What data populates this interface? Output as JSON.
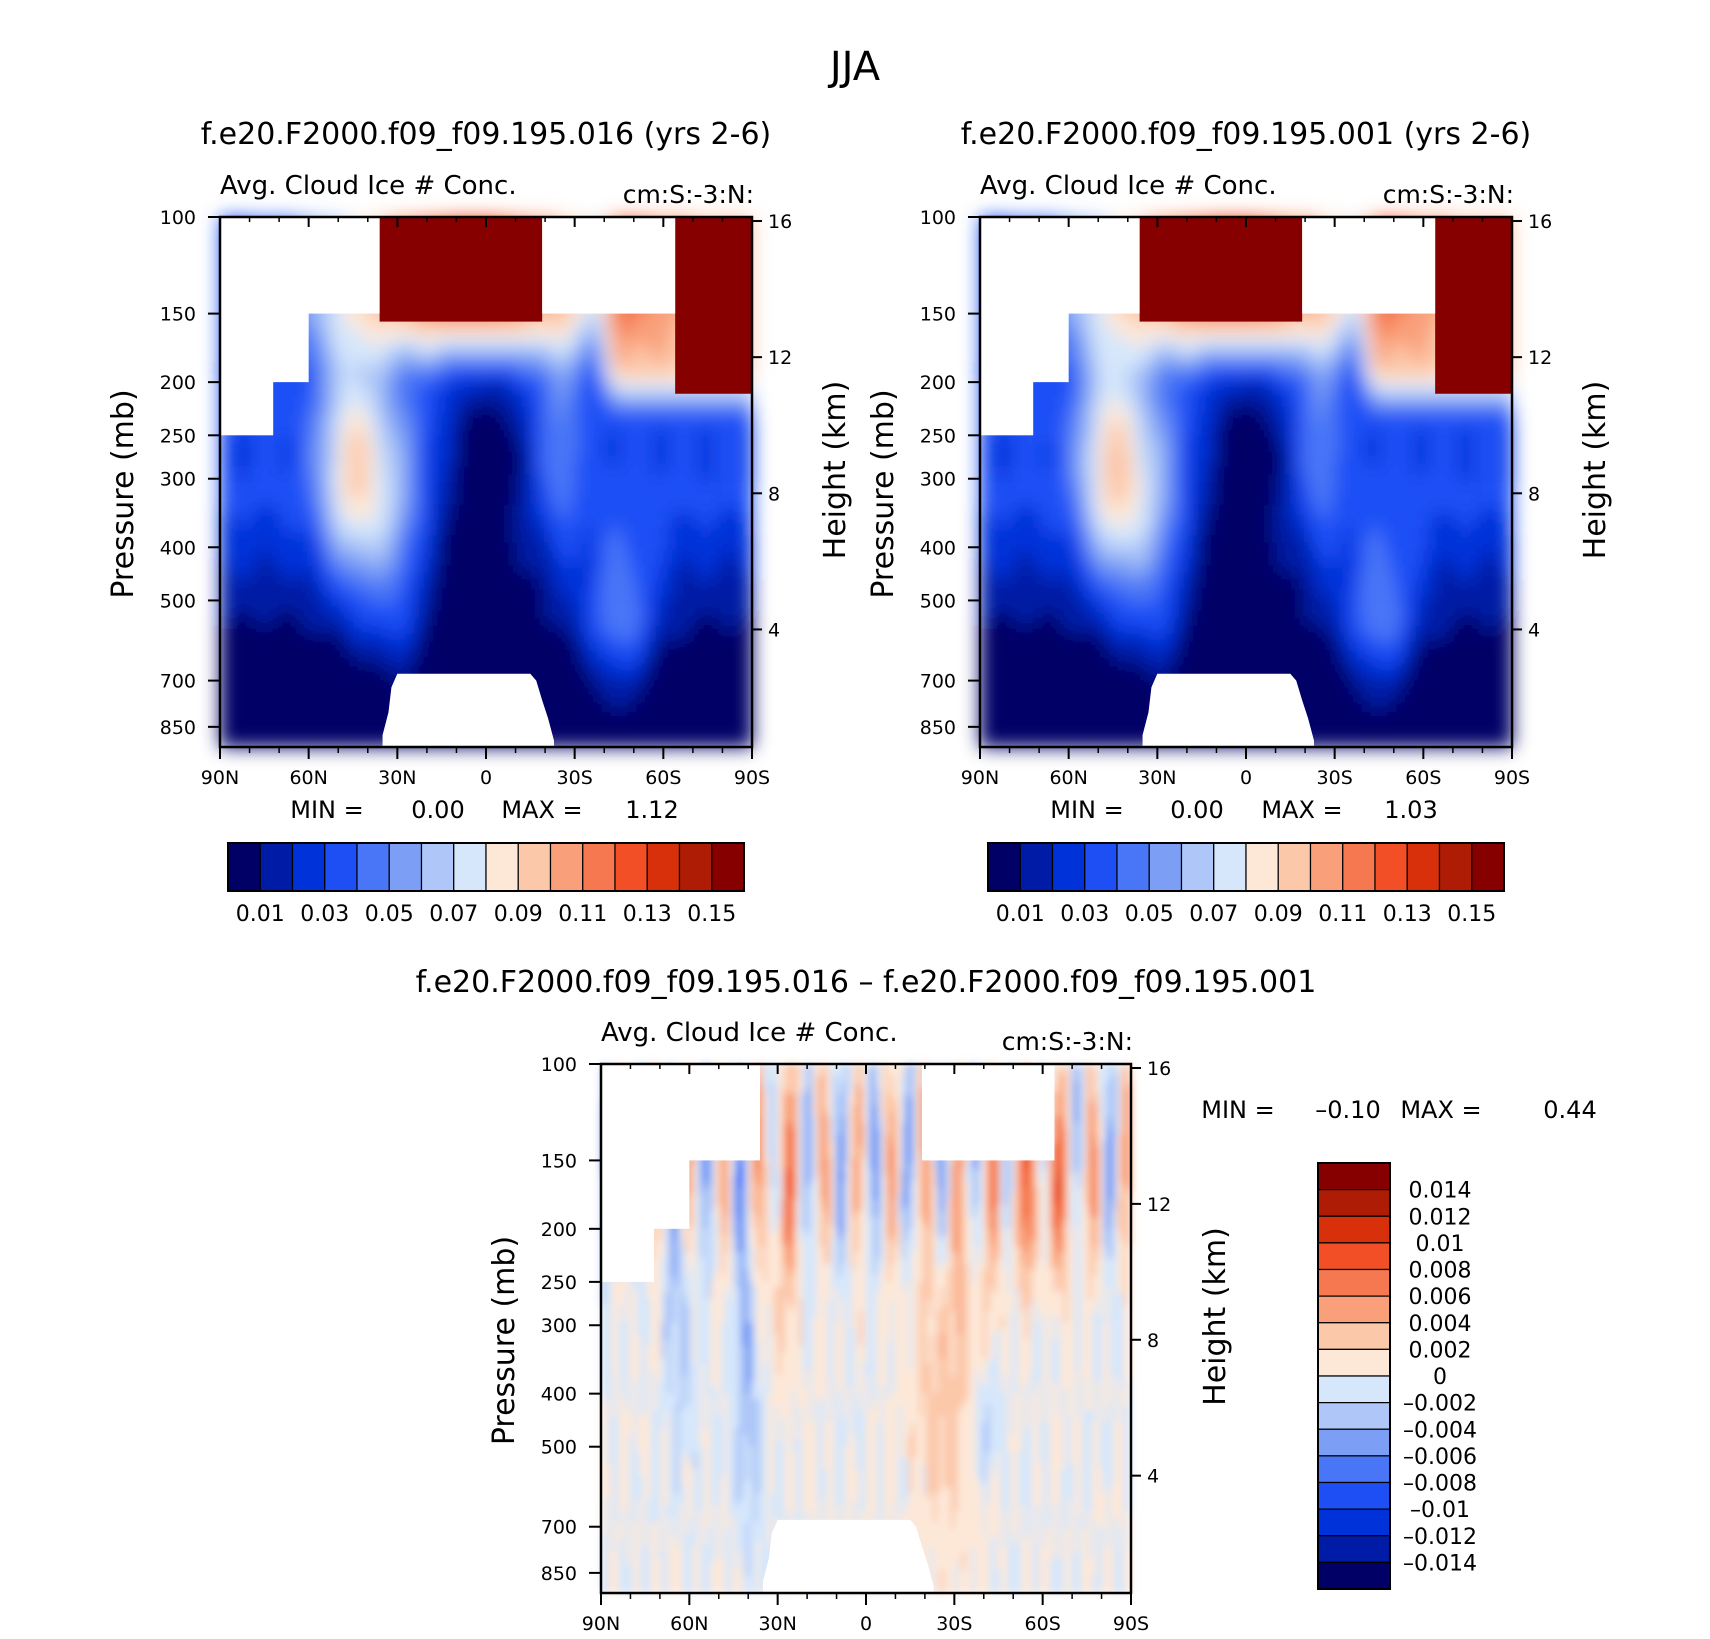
{
  "page": {
    "title": "JJA",
    "background": "#ffffff"
  },
  "chart_data": [
    {
      "type": "heatmap",
      "id": "panel-a",
      "title": "f.e20.F2000.f09_f09.195.016 (yrs 2-6)",
      "subtitle_left": "Avg. Cloud Ice # Conc.",
      "subtitle_right": "cm:S:-3:N:",
      "ylabel": "Pressure (mb)",
      "ylabel_right": "Height (km)",
      "xlabel": "",
      "x_ticks": [
        "90N",
        "60N",
        "30N",
        "0",
        "30S",
        "60S",
        "90S"
      ],
      "y_ticks": [
        100,
        150,
        200,
        250,
        300,
        400,
        500,
        700,
        850
      ],
      "y_right_ticks": [
        16,
        12,
        8,
        4
      ],
      "min_label": "MIN =",
      "min_value": "0.00",
      "max_label": "MAX =",
      "max_value": "1.12",
      "colorbar_labels": [
        "0.01",
        "0.03",
        "0.05",
        "0.07",
        "0.09",
        "0.11",
        "0.13",
        "0.15"
      ],
      "colorbar_orientation": "horizontal"
    },
    {
      "type": "heatmap",
      "id": "panel-b",
      "title": "f.e20.F2000.f09_f09.195.001 (yrs 2-6)",
      "subtitle_left": "Avg. Cloud Ice # Conc.",
      "subtitle_right": "cm:S:-3:N:",
      "ylabel": "Pressure (mb)",
      "ylabel_right": "Height (km)",
      "xlabel": "",
      "x_ticks": [
        "90N",
        "60N",
        "30N",
        "0",
        "30S",
        "60S",
        "90S"
      ],
      "y_ticks": [
        100,
        150,
        200,
        250,
        300,
        400,
        500,
        700,
        850
      ],
      "y_right_ticks": [
        16,
        12,
        8,
        4
      ],
      "min_label": "MIN =",
      "min_value": "0.00",
      "max_label": "MAX =",
      "max_value": "1.03",
      "colorbar_labels": [
        "0.01",
        "0.03",
        "0.05",
        "0.07",
        "0.09",
        "0.11",
        "0.13",
        "0.15"
      ],
      "colorbar_orientation": "horizontal"
    },
    {
      "type": "heatmap",
      "id": "panel-c",
      "title": "f.e20.F2000.f09_f09.195.016 – f.e20.F2000.f09_f09.195.001",
      "subtitle_left": "Avg. Cloud Ice # Conc.",
      "subtitle_right": "cm:S:-3:N:",
      "ylabel": "Pressure (mb)",
      "ylabel_right": "Height (km)",
      "xlabel": "",
      "x_ticks": [
        "90N",
        "60N",
        "30N",
        "0",
        "30S",
        "60S",
        "90S"
      ],
      "y_ticks": [
        100,
        150,
        200,
        250,
        300,
        400,
        500,
        700,
        850
      ],
      "y_right_ticks": [
        16,
        12,
        8,
        4
      ],
      "min_label": "MIN =",
      "min_value": "–0.10",
      "max_label": "MAX =",
      "max_value": "0.44",
      "colorbar_labels": [
        "0.014",
        "0.012",
        "0.01",
        "0.008",
        "0.006",
        "0.004",
        "0.002",
        "0",
        "–0.002",
        "–0.004",
        "–0.006",
        "–0.008",
        "–0.01",
        "–0.012",
        "–0.014"
      ],
      "colorbar_orientation": "vertical"
    }
  ],
  "palette": [
    "#000066",
    "#001ba6",
    "#0032d9",
    "#1e4ff5",
    "#4876f7",
    "#7c9ef5",
    "#aec7f8",
    "#d6e7fb",
    "#fde8d8",
    "#fcc8aa",
    "#f9a07a",
    "#f57850",
    "#f24f26",
    "#d9300c",
    "#ae1c05",
    "#870000"
  ],
  "missing_color": "#ffffff"
}
